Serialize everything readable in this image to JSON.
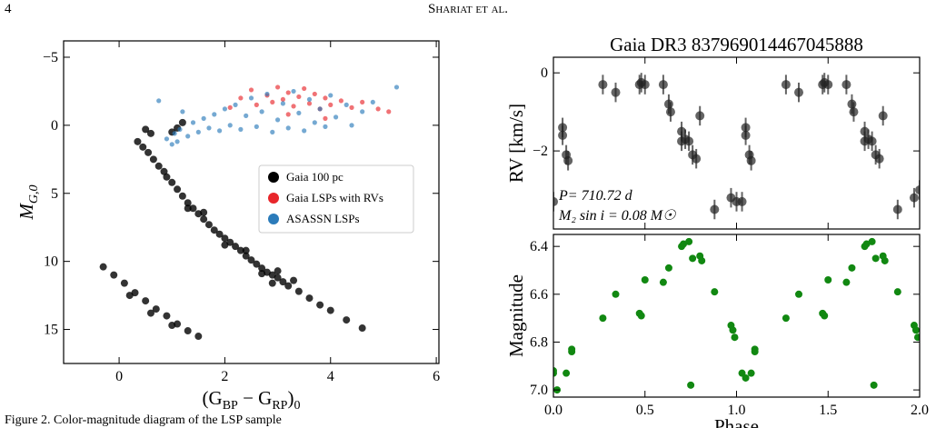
{
  "header": {
    "page": "4",
    "running_title": "Shariat et al."
  },
  "caption": "Figure 2. Color-magnitude diagram of the LSP sample",
  "chart_data": [
    {
      "type": "scatter",
      "ylabel": {
        "main": "M",
        "sub": "G,0"
      },
      "xlabel": [
        {
          "text": "(G"
        },
        {
          "sub": "BP"
        },
        {
          "text": " − G"
        },
        {
          "sub": "RP"
        },
        {
          "text": ")"
        },
        {
          "sub": "0"
        }
      ],
      "xlim": [
        -1.05,
        6.05
      ],
      "xticks": [
        0,
        2,
        4,
        6
      ],
      "ylim": [
        17.5,
        -6.2
      ],
      "yticks": [
        {
          "value": -5,
          "label": "−5"
        },
        0,
        5,
        10,
        15
      ],
      "legend": "right",
      "series": [
        {
          "name": "Gaia 100 pc",
          "color": "#000000",
          "x": [
            0.35,
            0.45,
            0.55,
            0.65,
            0.75,
            0.85,
            0.6,
            0.5,
            1.0,
            1.1,
            1.2,
            0.9,
            1.0,
            1.1,
            1.2,
            1.3,
            1.4,
            1.5,
            1.6,
            1.7,
            1.8,
            1.9,
            2.0,
            2.1,
            2.2,
            2.3,
            2.4,
            2.5,
            2.6,
            2.7,
            2.8,
            2.9,
            3.0,
            3.1,
            3.2,
            3.4,
            3.6,
            3.8,
            4.0,
            4.3,
            4.6,
            1.3,
            1.6,
            2.0,
            2.4,
            2.7,
            3.0,
            2.9,
            3.3,
            -0.3,
            -0.1,
            0.1,
            0.3,
            0.5,
            0.7,
            0.9,
            1.1,
            1.3,
            1.5,
            0.2,
            0.6,
            1.0
          ],
          "y": [
            1.2,
            1.6,
            2.0,
            2.5,
            3.0,
            3.4,
            0.6,
            0.3,
            0.5,
            0.2,
            -0.2,
            3.8,
            4.2,
            4.7,
            5.2,
            5.7,
            6.1,
            6.5,
            6.9,
            7.3,
            7.7,
            8.0,
            8.3,
            8.6,
            8.9,
            9.2,
            9.6,
            9.9,
            10.2,
            10.5,
            10.8,
            11.0,
            11.2,
            11.5,
            11.8,
            12.2,
            12.7,
            13.2,
            13.6,
            14.3,
            14.9,
            6.1,
            6.4,
            8.8,
            9.2,
            10.9,
            10.7,
            11.6,
            11.4,
            10.4,
            11.0,
            11.6,
            12.3,
            12.9,
            13.5,
            14.0,
            14.6,
            15.1,
            15.5,
            12.5,
            13.8,
            14.7
          ]
        },
        {
          "name": "Gaia LSPs with RVs",
          "color": "#e8262b",
          "x": [
            2.3,
            2.5,
            2.6,
            2.8,
            2.9,
            3.0,
            3.1,
            3.2,
            3.3,
            3.4,
            3.5,
            3.6,
            3.7,
            3.8,
            3.9,
            4.0,
            4.2,
            4.4,
            4.6,
            4.9,
            5.1,
            3.2,
            2.1,
            3.9
          ],
          "y": [
            -2.0,
            -2.6,
            -1.5,
            -2.2,
            -1.7,
            -2.8,
            -1.9,
            -2.4,
            -1.4,
            -2.1,
            -2.7,
            -1.6,
            -2.3,
            -1.2,
            -2.0,
            -1.5,
            -1.8,
            -1.3,
            -1.7,
            -1.2,
            -1.0,
            -0.8,
            -1.3,
            -0.5
          ]
        },
        {
          "name": "ASASSN LSPs",
          "color": "#2b7bba",
          "x": [
            0.9,
            1.0,
            1.05,
            1.1,
            1.15,
            1.3,
            1.4,
            1.5,
            1.6,
            1.7,
            1.8,
            1.9,
            2.0,
            2.1,
            2.2,
            2.3,
            2.4,
            2.5,
            2.6,
            2.7,
            2.8,
            2.9,
            3.0,
            3.1,
            3.2,
            3.3,
            3.4,
            3.5,
            3.6,
            3.7,
            3.8,
            3.9,
            4.0,
            4.1,
            4.3,
            4.4,
            4.6,
            4.8,
            0.75,
            1.2,
            5.25
          ],
          "y": [
            1.0,
            1.4,
            0.6,
            1.2,
            0.3,
            0.8,
            -0.2,
            0.5,
            -0.5,
            0.2,
            -0.8,
            0.4,
            -1.2,
            0.0,
            -1.5,
            0.3,
            -0.7,
            -2.0,
            0.1,
            -1.0,
            -2.3,
            0.5,
            -0.4,
            -1.6,
            0.2,
            -2.5,
            -0.9,
            0.4,
            -1.9,
            -0.2,
            -1.2,
            0.1,
            -2.2,
            -0.6,
            -1.5,
            0.0,
            -1.0,
            -1.7,
            -1.8,
            -1.0,
            -2.8
          ]
        }
      ]
    },
    {
      "type": "errorbar",
      "title": "Gaia DR3 837969014467045888",
      "ylabel": "RV [km/s]",
      "annotations": [
        "P= 710.72 d",
        "M₂ sin i = 0.08 M☉"
      ],
      "xlim": [
        0,
        2
      ],
      "xticks": [
        0,
        0.5,
        1,
        1.5,
        2
      ],
      "ylim": [
        -4.0,
        0.4
      ],
      "yticks": [
        {
          "value": -2,
          "label": "−2"
        },
        0
      ],
      "series": [
        {
          "color": "#222222",
          "x": [
            0.0,
            0.05,
            0.05,
            0.07,
            0.08,
            0.27,
            0.34,
            0.47,
            0.48,
            0.5,
            0.6,
            0.63,
            0.64,
            0.7,
            0.7,
            0.72,
            0.74,
            0.76,
            0.78,
            0.8,
            0.88,
            0.97,
            1.0,
            1.03,
            1.05,
            1.05,
            1.07,
            1.08,
            1.27,
            1.34,
            1.47,
            1.48,
            1.5,
            1.6,
            1.63,
            1.64,
            1.7,
            1.7,
            1.72,
            1.74,
            1.76,
            1.78,
            1.8,
            1.88,
            1.97,
            2.0
          ],
          "values": [
            -3.3,
            -1.4,
            -1.6,
            -2.1,
            -2.25,
            -0.3,
            -0.5,
            -0.3,
            -0.25,
            -0.3,
            -0.3,
            -0.8,
            -1.0,
            -1.5,
            -1.75,
            -1.7,
            -1.75,
            -2.1,
            -2.2,
            -1.1,
            -3.5,
            -3.2,
            -3.3,
            -3.3,
            -1.4,
            -1.6,
            -2.1,
            -2.25,
            -0.3,
            -0.5,
            -0.3,
            -0.25,
            -0.3,
            -0.3,
            -0.8,
            -1.0,
            -1.5,
            -1.75,
            -1.7,
            -1.75,
            -2.1,
            -2.2,
            -1.1,
            -3.5,
            -3.2,
            -3.0
          ],
          "errors": [
            0.25,
            0.25,
            0.25,
            0.25,
            0.25,
            0.25,
            0.25,
            0.25,
            0.25,
            0.25,
            0.25,
            0.25,
            0.25,
            0.25,
            0.25,
            0.25,
            0.25,
            0.25,
            0.25,
            0.25,
            0.25,
            0.25,
            0.25,
            0.25,
            0.25,
            0.25,
            0.25,
            0.25,
            0.25,
            0.25,
            0.25,
            0.25,
            0.25,
            0.25,
            0.25,
            0.25,
            0.25,
            0.25,
            0.25,
            0.25,
            0.25,
            0.25,
            0.25,
            0.25,
            0.25,
            0.25
          ]
        }
      ]
    },
    {
      "type": "scatter",
      "ylabel": "Magnitude",
      "xlabel": "Phase",
      "xlim": [
        0,
        2
      ],
      "xticks": [
        {
          "value": 0,
          "label": "0.0"
        },
        0.5,
        {
          "value": 1,
          "label": "1.0"
        },
        1.5,
        {
          "value": 2,
          "label": "2.0"
        }
      ],
      "ylim": [
        7.03,
        6.35
      ],
      "yticks": [
        6.4,
        6.6,
        6.8,
        {
          "value": 7,
          "label": "7.0"
        }
      ],
      "series": [
        {
          "color": "#118811",
          "x": [
            0,
            0,
            0.02,
            0.07,
            0.1,
            0.1,
            0.27,
            0.34,
            0.47,
            0.48,
            0.5,
            0.6,
            0.63,
            0.7,
            0.71,
            0.74,
            0.75,
            0.76,
            0.8,
            0.81,
            0.88,
            0.97,
            0.98,
            0.99,
            1.03,
            1.05,
            1.08,
            1.1,
            1.1,
            1.27,
            1.34,
            1.47,
            1.48,
            1.5,
            1.6,
            1.63,
            1.7,
            1.71,
            1.74,
            1.75,
            1.76,
            1.8,
            1.81,
            1.88,
            1.97,
            1.98,
            1.99
          ],
          "y": [
            6.93,
            6.92,
            7.0,
            6.93,
            6.84,
            6.83,
            6.7,
            6.6,
            6.68,
            6.69,
            6.54,
            6.55,
            6.49,
            6.4,
            6.39,
            6.38,
            6.98,
            6.45,
            6.44,
            6.46,
            6.59,
            6.73,
            6.75,
            6.78,
            6.93,
            6.95,
            6.93,
            6.84,
            6.83,
            6.7,
            6.6,
            6.68,
            6.69,
            6.54,
            6.55,
            6.49,
            6.4,
            6.39,
            6.38,
            6.98,
            6.45,
            6.44,
            6.46,
            6.59,
            6.73,
            6.75,
            6.78
          ]
        }
      ]
    }
  ]
}
